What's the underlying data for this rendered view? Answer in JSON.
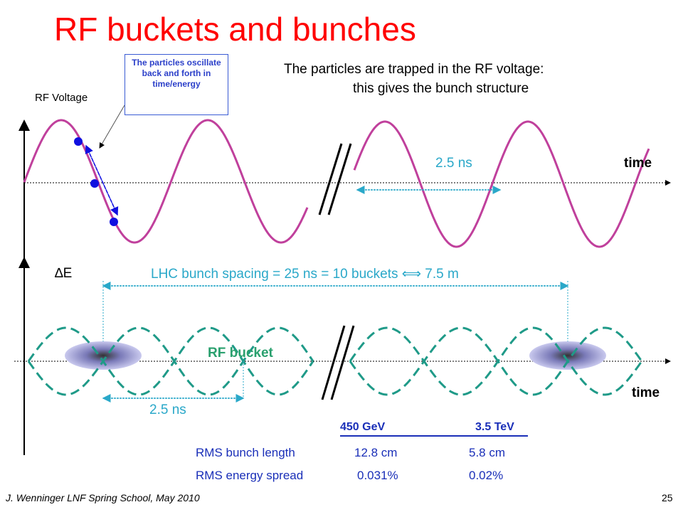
{
  "title": "RF buckets and bunches",
  "callout": "The particles oscillate back and forth in time/energy",
  "rf_voltage_label": "RF Voltage",
  "trapped_line1": "The particles are trapped in the RF voltage:",
  "trapped_line2": "this gives the bunch structure",
  "period_top": "2.5 ns",
  "time_label_top": "time",
  "delta_e_label": "∆E",
  "spacing_label": "LHC bunch spacing = 25 ns = 10 buckets ⟺ 7.5 m",
  "rf_bucket_label": "RF bucket",
  "time_label_bottom": "time",
  "period_bottom": "2.5 ns",
  "table": {
    "col1": "450 GeV",
    "col2": "3.5 TeV",
    "rows": [
      {
        "label": "RMS bunch length",
        "v1": "12.8 cm",
        "v2": "5.8 cm"
      },
      {
        "label": "RMS energy spread",
        "v1": "0.031%",
        "v2": "0.02%"
      }
    ]
  },
  "footer": "J. Wenninger LNF Spring School, May 2010",
  "page_number": "25",
  "colors": {
    "sine": "#c0409c",
    "bucket": "#1f9a88",
    "arrow": "#2aa8c9",
    "particle": "#1010e0",
    "title": "#ff0000"
  }
}
